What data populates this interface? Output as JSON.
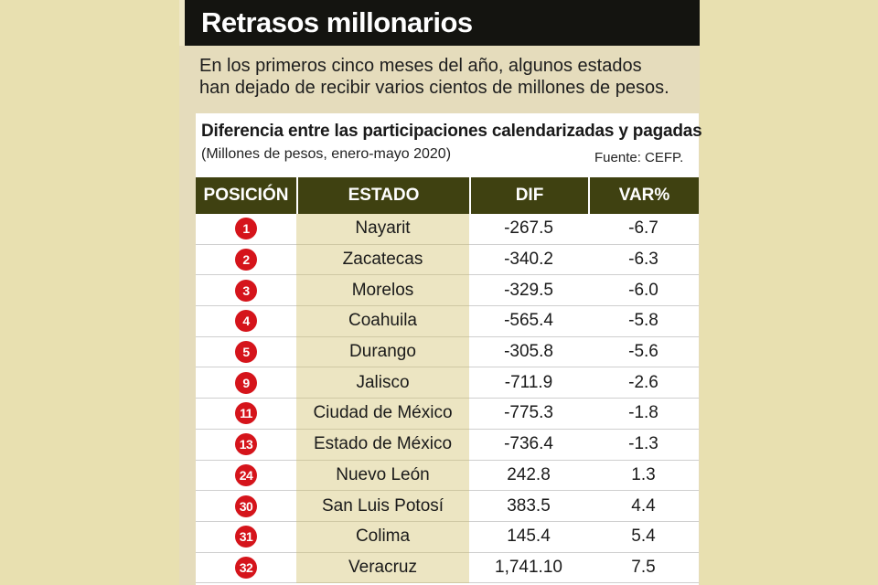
{
  "title": "Retrasos millonarios",
  "subtitle": "En los primeros cinco meses del año, algunos estados han dejado de recibir varios cientos de millones de pesos.",
  "table": {
    "title": "Diferencia entre las participaciones calendarizadas y pagadas",
    "unit_note": "(Millones de pesos, enero-mayo 2020)",
    "source": "Fuente: CEFP.",
    "headers": [
      "POSICIÓN",
      "ESTADO",
      "DIF",
      "VAR%"
    ],
    "rows": [
      {
        "pos": "1",
        "estado": "Nayarit",
        "dif": "-267.5",
        "var": "-6.7"
      },
      {
        "pos": "2",
        "estado": "Zacatecas",
        "dif": "-340.2",
        "var": "-6.3"
      },
      {
        "pos": "3",
        "estado": "Morelos",
        "dif": "-329.5",
        "var": "-6.0"
      },
      {
        "pos": "4",
        "estado": "Coahuila",
        "dif": "-565.4",
        "var": "-5.8"
      },
      {
        "pos": "5",
        "estado": "Durango",
        "dif": "-305.8",
        "var": "-5.6"
      },
      {
        "pos": "9",
        "estado": "Jalisco",
        "dif": "-711.9",
        "var": "-2.6"
      },
      {
        "pos": "11",
        "estado": "Ciudad de México",
        "dif": "-775.3",
        "var": "-1.8"
      },
      {
        "pos": "13",
        "estado": "Estado de México",
        "dif": "-736.4",
        "var": "-1.3"
      },
      {
        "pos": "24",
        "estado": "Nuevo León",
        "dif": "242.8",
        "var": "1.3"
      },
      {
        "pos": "30",
        "estado": "San Luis Potosí",
        "dif": "383.5",
        "var": "4.4"
      },
      {
        "pos": "31",
        "estado": "Colima",
        "dif": "145.4",
        "var": "5.4"
      },
      {
        "pos": "32",
        "estado": "Veracruz",
        "dif": "1,741.10",
        "var": "7.5"
      }
    ]
  },
  "colors": {
    "header_bg": "#3f4111",
    "badge": "#d5141b",
    "title_bar": "#141410",
    "state_column_bg": "#ece5c2"
  }
}
